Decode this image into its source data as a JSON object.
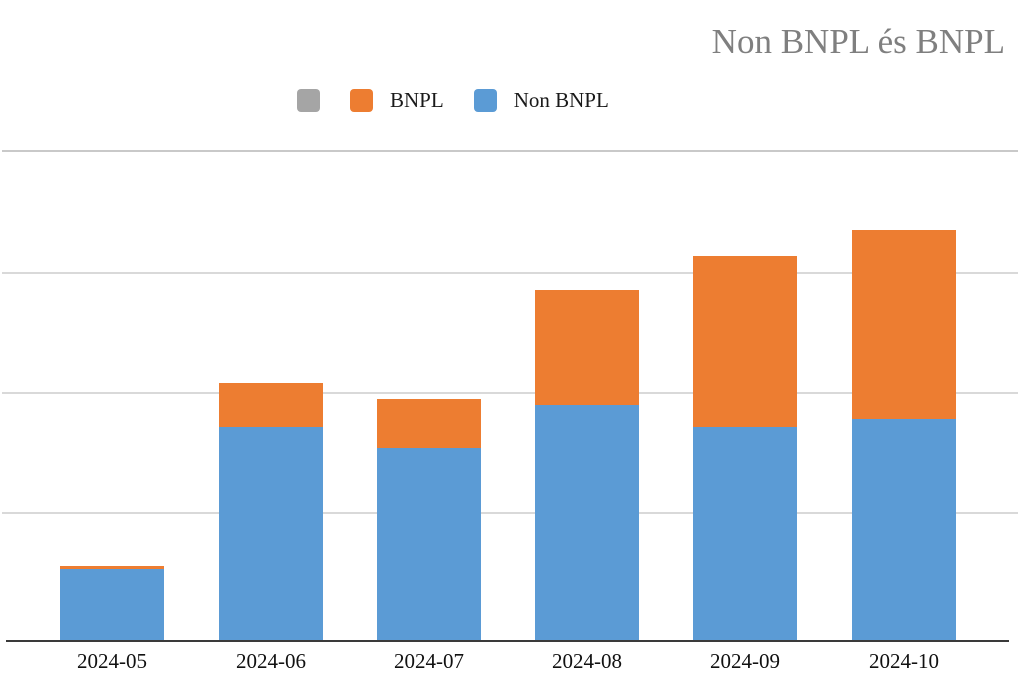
{
  "title": "Non BNPL és BNPL",
  "legend": {
    "items": [
      {
        "label": "",
        "color": "#a5a5a5",
        "name": "legend-item-blank"
      },
      {
        "label": "BNPL",
        "color": "#ed7d31",
        "name": "legend-item-bnpl"
      },
      {
        "label": "Non BNPL",
        "color": "#5b9bd5",
        "name": "legend-item-non-bnpl"
      }
    ]
  },
  "colors": {
    "title_text": "#7f7f7f",
    "bnpl_orange": "#ed7d31",
    "non_bnpl_blue": "#5b9bd5",
    "unused_gray": "#a5a5a5",
    "gridline": "#d9d9d9",
    "axis_line": "#3a3a3a",
    "label_text": "#111111",
    "background": "#ffffff"
  },
  "chart_data": {
    "type": "bar",
    "stacked": true,
    "title": "Non BNPL és BNPL",
    "xlabel": "",
    "ylabel": "",
    "categories": [
      "2024-05",
      "2024-06",
      "2024-07",
      "2024-08",
      "2024-09",
      "2024-10"
    ],
    "series": [
      {
        "name": "Non BNPL",
        "color": "#5b9bd5",
        "values": [
          0.59,
          1.74,
          1.57,
          1.92,
          1.74,
          1.81
        ]
      },
      {
        "name": "BNPL",
        "color": "#ed7d31",
        "values": [
          0.02,
          0.36,
          0.4,
          0.94,
          1.4,
          1.54
        ]
      }
    ],
    "totals": [
      0.61,
      2.1,
      1.97,
      2.86,
      3.14,
      3.35
    ],
    "ylim": [
      0,
      4
    ],
    "y_gridline_values": [
      1,
      2,
      3,
      4
    ],
    "y_axis_labels_visible": false,
    "grid": true,
    "legend_position": "top-left",
    "note_units": "no y-axis tick labels shown; values estimated in gridline units (1 unit per gridline)"
  }
}
